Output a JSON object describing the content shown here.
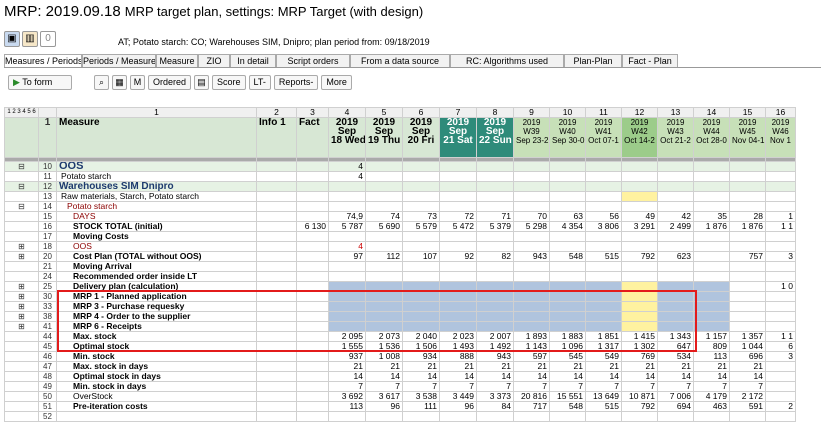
{
  "title": {
    "prefix": "MRP: 2019.09.18",
    "rest": "MRP target plan, settings: MRP Target (with design)"
  },
  "info": "AT; Potato starch: CO; Warehouses SIM, Dnipro; plan period from: 09/18/2019",
  "toolbar_icons": [
    "save-icon",
    "chart-icon",
    "zero-icon"
  ],
  "zero_label": "0",
  "tabs": [
    "Measures / Periods",
    "Periods / Measures",
    "Measure",
    "ZIO",
    "In detail",
    "Script orders",
    "From a data source",
    "RC: Algorithms used",
    "Plan-Plan",
    "Fact - Plan"
  ],
  "buttons": {
    "to_form": "To form",
    "ordered": "Ordered",
    "score": "Score",
    "lt": "LT-",
    "reports": "Reports-",
    "more": "More",
    "m": "M"
  },
  "levels": "1 2 3 4 5 6",
  "col_nums": [
    "1",
    "2",
    "3",
    "4",
    "5",
    "6",
    "7",
    "8",
    "9",
    "10",
    "11",
    "12",
    "13",
    "14",
    "15",
    "16"
  ],
  "header": {
    "measure": "Measure",
    "info": "Info 1",
    "fact": "Fact"
  },
  "days": [
    {
      "y": "2019",
      "m": "Sep",
      "d": "18 Wed"
    },
    {
      "y": "2019",
      "m": "Sep",
      "d": "19 Thu"
    },
    {
      "y": "2019",
      "m": "Sep",
      "d": "20 Fri"
    },
    {
      "y": "2019",
      "m": "Sep",
      "d": "21 Sat"
    },
    {
      "y": "2019",
      "m": "Sep",
      "d": "22 Sun"
    }
  ],
  "weeks": [
    {
      "y": "2019",
      "w": "W39",
      "r": "Sep 23-2"
    },
    {
      "y": "2019",
      "w": "W40",
      "r": "Sep 30-0"
    },
    {
      "y": "2019",
      "w": "W41",
      "r": "Oct 07-1"
    },
    {
      "y": "2019",
      "w": "W42",
      "r": "Oct 14-2"
    },
    {
      "y": "2019",
      "w": "W43",
      "r": "Oct 21-2"
    },
    {
      "y": "2019",
      "w": "W44",
      "r": "Oct 28-0"
    },
    {
      "y": "2019",
      "w": "W45",
      "r": "Nov 04-1"
    },
    {
      "y": "2019",
      "w": "W46",
      "r": "Nov 1"
    }
  ],
  "rows": [
    {
      "n": "10",
      "label": "OOS",
      "cls": "oos",
      "v": [
        "",
        "",
        "4",
        "",
        "",
        "",
        "",
        "",
        "",
        "",
        "",
        "",
        "",
        "",
        "",
        ""
      ]
    },
    {
      "n": "11",
      "label": "Potato starch",
      "v": [
        "",
        "",
        "4",
        "",
        "",
        "",
        "",
        "",
        "",
        "",
        "",
        "",
        "",
        "",
        ""
      ]
    },
    {
      "n": "12",
      "label": "Warehouses SIM Dnipro",
      "cls": "wh",
      "v": []
    },
    {
      "n": "13",
      "label": "Raw materials, Starch, Potato starch",
      "v": []
    },
    {
      "n": "14",
      "label": "Potato starch",
      "color": "#8b0000",
      "v": []
    },
    {
      "n": "15",
      "label": "DAYS",
      "color": "#8b0000",
      "v": [
        "",
        "",
        "74,9",
        "74",
        "73",
        "72",
        "71",
        "70",
        "63",
        "56",
        "49",
        "42",
        "35",
        "28",
        "1"
      ]
    },
    {
      "n": "16",
      "label": "STOCK TOTAL (initial)",
      "bold": true,
      "v": [
        "",
        "6 130",
        "5 787",
        "5 690",
        "5 579",
        "5 472",
        "5 379",
        "5 298",
        "4 354",
        "3 806",
        "3 291",
        "2 499",
        "1 876",
        "1 876",
        "1 1"
      ]
    },
    {
      "n": "17",
      "label": "Moving Costs",
      "bold": true,
      "v": []
    },
    {
      "n": "18",
      "label": "OOS",
      "color": "#8b0000",
      "v": [
        "",
        "",
        "4",
        "",
        "",
        "",
        "",
        "",
        "",
        "",
        "",
        "",
        "",
        "",
        ""
      ]
    },
    {
      "n": "20",
      "label": "Cost Plan (TOTAL without OOS)",
      "bold": true,
      "v": [
        "",
        "",
        "97",
        "112",
        "107",
        "92",
        "82",
        "943",
        "548",
        "515",
        "792",
        "623",
        "",
        "757",
        "3"
      ]
    },
    {
      "n": "21",
      "label": "Moving Arrival",
      "bold": true,
      "v": []
    },
    {
      "n": "24",
      "label": "Recommended order inside LT",
      "bold": true,
      "v": []
    },
    {
      "n": "25",
      "label": "Delivery plan (calculation)",
      "bold": true,
      "v": [
        "",
        "",
        "",
        "",
        "",
        "",
        "",
        "",
        "",
        "",
        "",
        "",
        "",
        "",
        "1 0"
      ]
    },
    {
      "n": "30",
      "label": "MRP 1 - Planned application",
      "bold": true,
      "v": []
    },
    {
      "n": "33",
      "label": "MRP 3 - Purchase requesky",
      "bold": true,
      "v": []
    },
    {
      "n": "38",
      "label": "MRP 4 - Order to the supplier",
      "bold": true,
      "v": []
    },
    {
      "n": "41",
      "label": "MRP 6 - Receipts",
      "bold": true,
      "v": []
    },
    {
      "n": "44",
      "label": "Max. stock",
      "bold": true,
      "v": [
        "",
        "",
        "2 095",
        "2 073",
        "2 040",
        "2 023",
        "2 007",
        "1 893",
        "1 883",
        "1 851",
        "1 415",
        "1 343",
        "1 157",
        "1 357",
        "1 1"
      ]
    },
    {
      "n": "45",
      "label": "Optimal stock",
      "bold": true,
      "v": [
        "",
        "",
        "1 555",
        "1 536",
        "1 506",
        "1 493",
        "1 492",
        "1 143",
        "1 096",
        "1 317",
        "1 302",
        "647",
        "809",
        "1 044",
        "6"
      ]
    },
    {
      "n": "46",
      "label": "Min. stock",
      "bold": true,
      "v": [
        "",
        "",
        "937",
        "1 008",
        "934",
        "888",
        "943",
        "597",
        "545",
        "549",
        "769",
        "534",
        "113",
        "696",
        "3"
      ]
    },
    {
      "n": "47",
      "label": "Max. stock in days",
      "bold": true,
      "v": [
        "",
        "",
        "21",
        "21",
        "21",
        "21",
        "21",
        "21",
        "21",
        "21",
        "21",
        "21",
        "21",
        "21",
        ""
      ]
    },
    {
      "n": "48",
      "label": "Optimal stock in days",
      "bold": true,
      "v": [
        "",
        "",
        "14",
        "14",
        "14",
        "14",
        "14",
        "14",
        "14",
        "14",
        "14",
        "14",
        "14",
        "14",
        ""
      ]
    },
    {
      "n": "49",
      "label": "Min. stock in days",
      "bold": true,
      "v": [
        "",
        "",
        "7",
        "7",
        "7",
        "7",
        "7",
        "7",
        "7",
        "7",
        "7",
        "7",
        "7",
        "7",
        ""
      ]
    },
    {
      "n": "50",
      "label": "OverStock",
      "v": [
        "",
        "",
        "3 692",
        "3 617",
        "3 538",
        "3 449",
        "3 373",
        "20 816",
        "15 551",
        "13 649",
        "10 871",
        "7 006",
        "4 179",
        "2 172",
        ""
      ]
    },
    {
      "n": "51",
      "label": "Pre-iteration costs",
      "bold": true,
      "v": [
        "",
        "",
        "113",
        "96",
        "111",
        "96",
        "84",
        "717",
        "548",
        "515",
        "792",
        "694",
        "463",
        "591",
        "2"
      ]
    },
    {
      "n": "52",
      "label": "",
      "v": []
    }
  ]
}
